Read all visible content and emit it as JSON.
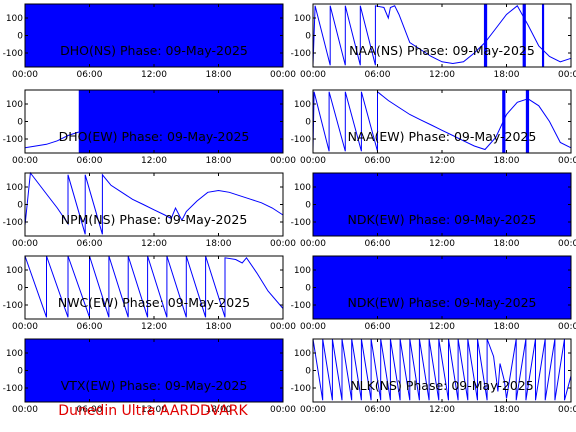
{
  "footer": "Dunedin Ultra AARDDVARK",
  "colors": {
    "trace": "#0000ff",
    "footer": "#e00000",
    "axes": "#000000"
  },
  "chart_data": [
    {
      "type": "line",
      "title": "DHO(NS) Phase: 09-May-2025",
      "ylim": [
        -180,
        180
      ],
      "yticks": [
        100,
        0,
        -100
      ],
      "xlim": [
        0,
        24
      ],
      "xticks": [
        "00:00",
        "06:00",
        "12:00",
        "18:00",
        "00:00"
      ],
      "segments": [
        {
          "mode": "fill",
          "x": [
            0,
            24
          ],
          "y": [
            -180,
            180
          ]
        }
      ]
    },
    {
      "type": "line",
      "title": "NAA(NS) Phase: 09-May-2025",
      "ylim": [
        -180,
        180
      ],
      "yticks": [
        100,
        0,
        -100
      ],
      "xlim": [
        0,
        24
      ],
      "xticks": [
        "00:00",
        "06:00",
        "12:00",
        "18:00",
        "00:00"
      ],
      "segments": [
        {
          "mode": "line",
          "x": [
            0,
            0.2,
            0.2,
            1.6,
            1.6,
            3.0,
            3.0,
            4.4,
            4.4,
            5.8,
            5.8,
            6.6,
            7.0,
            7.2,
            7.6,
            8.0,
            9.0,
            10.0,
            11.0,
            12.0,
            13.0,
            14.0,
            15.0,
            16.0,
            17.0,
            18.0,
            19.0,
            20.0,
            21.0,
            22.0,
            23.0,
            24.0
          ],
          "y": [
            -170,
            170,
            170,
            -170,
            170,
            -170,
            170,
            -170,
            170,
            -170,
            170,
            160,
            100,
            160,
            170,
            120,
            -40,
            -80,
            -120,
            -150,
            -160,
            -150,
            -100,
            -40,
            40,
            120,
            170,
            60,
            -60,
            -120,
            -150,
            -130
          ]
        },
        {
          "mode": "fill",
          "x": [
            15.9,
            16.2
          ],
          "y": [
            -180,
            180
          ]
        },
        {
          "mode": "fill",
          "x": [
            19.5,
            19.8
          ],
          "y": [
            -180,
            180
          ]
        },
        {
          "mode": "fill",
          "x": [
            21.3,
            21.5
          ],
          "y": [
            -180,
            180
          ]
        }
      ]
    },
    {
      "type": "line",
      "title": "DHO(EW) Phase: 09-May-2025",
      "ylim": [
        -180,
        180
      ],
      "yticks": [
        100,
        0,
        -100
      ],
      "xlim": [
        0,
        24
      ],
      "xticks": [
        "00:00",
        "06:00",
        "12:00",
        "18:00",
        "00:00"
      ],
      "segments": [
        {
          "mode": "line",
          "x": [
            0,
            1,
            2,
            3,
            4,
            5
          ],
          "y": [
            -150,
            -140,
            -130,
            -110,
            -80,
            -60
          ]
        },
        {
          "mode": "fill",
          "x": [
            5,
            24
          ],
          "y": [
            -180,
            180
          ]
        }
      ]
    },
    {
      "type": "line",
      "title": "NAA(EW) Phase: 09-May-2025",
      "ylim": [
        -180,
        180
      ],
      "yticks": [
        100,
        0,
        -100
      ],
      "xlim": [
        0,
        24
      ],
      "xticks": [
        "00:00",
        "06:00",
        "12:00",
        "18:00",
        "00:00"
      ],
      "segments": [
        {
          "mode": "line",
          "x": [
            0,
            0.1,
            0.1,
            1.5,
            1.5,
            3.0,
            3.0,
            4.5,
            4.5,
            6.0,
            6.0,
            7.0,
            8.0,
            9.0,
            10.0,
            11.0,
            12.0,
            13.0,
            14.0,
            15.0,
            16.0,
            17.0,
            18.0,
            19.0,
            20.0,
            21.0,
            22.0,
            23.0,
            24.0
          ],
          "y": [
            -170,
            170,
            170,
            -170,
            170,
            -170,
            170,
            -170,
            170,
            -170,
            170,
            120,
            80,
            40,
            10,
            -20,
            -50,
            -80,
            -110,
            -140,
            -160,
            -90,
            40,
            110,
            130,
            90,
            0,
            -120,
            -150
          ]
        },
        {
          "mode": "fill",
          "x": [
            17.6,
            17.9
          ],
          "y": [
            -180,
            180
          ]
        },
        {
          "mode": "fill",
          "x": [
            19.8,
            20.1
          ],
          "y": [
            -180,
            180
          ]
        }
      ]
    },
    {
      "type": "line",
      "title": "NPM(NS) Phase: 09-May-2025",
      "ylim": [
        -180,
        180
      ],
      "yticks": [
        100,
        0,
        -100
      ],
      "xlim": [
        0,
        24
      ],
      "xticks": [
        "00:00",
        "06:00",
        "12:00",
        "18:00",
        "00:00"
      ],
      "segments": [
        {
          "mode": "line",
          "x": [
            0,
            0.5,
            1.0,
            2.0,
            3.0,
            4.0,
            4.0,
            5.6,
            5.6,
            7.2,
            7.2,
            8.0,
            9.0,
            10.0,
            11.0,
            12.0,
            13.0,
            13.6,
            14.0,
            14.6,
            15.0,
            16.0,
            17.0,
            18.0,
            19.0,
            20.0,
            21.0,
            22.0,
            23.0,
            24.0
          ],
          "y": [
            -120,
            180,
            140,
            60,
            -20,
            -110,
            170,
            -170,
            170,
            -170,
            170,
            110,
            70,
            30,
            0,
            -30,
            -60,
            -80,
            -20,
            -90,
            -40,
            20,
            70,
            80,
            70,
            50,
            30,
            10,
            -20,
            -60
          ]
        }
      ]
    },
    {
      "type": "line",
      "title": "NDK(EW) Phase: 09-May-2025",
      "ylim": [
        -180,
        180
      ],
      "yticks": [
        100,
        0,
        -100
      ],
      "xlim": [
        0,
        24
      ],
      "xticks": [
        "00:00",
        "06:00",
        "12:00",
        "18:00",
        "00:00"
      ],
      "segments": [
        {
          "mode": "fill",
          "x": [
            0,
            24
          ],
          "y": [
            -180,
            180
          ]
        }
      ]
    },
    {
      "type": "line",
      "title": "NWC(EW) Phase: 09-May-2025",
      "ylim": [
        -180,
        180
      ],
      "yticks": [
        100,
        0,
        -100
      ],
      "xlim": [
        0,
        24
      ],
      "xticks": [
        "00:00",
        "06:00",
        "12:00",
        "18:00",
        "00:00"
      ],
      "segments": [
        {
          "mode": "line",
          "x": [
            0,
            2,
            2,
            4,
            4,
            6,
            6,
            7.8,
            7.8,
            9.6,
            9.6,
            11.4,
            11.4,
            13.2,
            13.2,
            15.0,
            15.0,
            16.8,
            16.8,
            18.6,
            18.6,
            19.6,
            20.2,
            20.6,
            21.6,
            22.6,
            24.0
          ],
          "y": [
            180,
            -170,
            180,
            -170,
            180,
            -170,
            180,
            -170,
            180,
            -170,
            180,
            -170,
            180,
            -170,
            180,
            -170,
            180,
            -170,
            180,
            -170,
            170,
            160,
            140,
            170,
            80,
            -20,
            -120
          ]
        }
      ]
    },
    {
      "type": "line",
      "title": "NDK(EW) Phase: 09-May-2025",
      "ylim": [
        -180,
        180
      ],
      "yticks": [
        100,
        0,
        -100
      ],
      "xlim": [
        0,
        24
      ],
      "xticks": [
        "00:00",
        "06:00",
        "12:00",
        "18:00",
        "00:00"
      ],
      "segments": [
        {
          "mode": "fill",
          "x": [
            0,
            24
          ],
          "y": [
            -180,
            180
          ]
        }
      ]
    },
    {
      "type": "line",
      "title": "VTX(EW) Phase: 09-May-2025",
      "ylim": [
        -180,
        180
      ],
      "yticks": [
        100,
        0,
        -100
      ],
      "xlim": [
        0,
        24
      ],
      "xticks": [
        "00:00",
        "06:00",
        "12:00",
        "18:00",
        "00:00"
      ],
      "segments": [
        {
          "mode": "fill",
          "x": [
            0,
            24
          ],
          "y": [
            -180,
            180
          ]
        }
      ]
    },
    {
      "type": "line",
      "title": "NLK(NS) Phase: 09-May-2025",
      "ylim": [
        -180,
        180
      ],
      "yticks": [
        100,
        0,
        -100
      ],
      "xlim": [
        0,
        24
      ],
      "xticks": [
        "00:00",
        "06:00",
        "12:00",
        "18:00",
        "00:00"
      ],
      "segments": [
        {
          "mode": "line",
          "x": [
            0,
            0.9,
            0.9,
            1.8,
            1.8,
            2.7,
            2.7,
            3.6,
            3.6,
            4.5,
            4.5,
            5.4,
            5.4,
            6.3,
            6.3,
            7.2,
            7.2,
            8.1,
            8.1,
            9.0,
            9.0,
            9.9,
            9.9,
            10.8,
            10.8,
            11.7,
            11.7,
            12.6,
            12.6,
            13.5,
            13.5,
            14.4,
            14.4,
            15.3,
            15.3,
            16.2,
            16.2,
            16.8,
            17.2,
            17.4,
            17.8,
            18.0,
            18.9,
            18.9,
            19.8,
            19.8,
            20.7,
            20.7,
            21.6,
            21.6,
            22.5,
            22.5,
            23.4,
            23.4,
            24.0
          ],
          "y": [
            180,
            -170,
            180,
            -170,
            180,
            -170,
            180,
            -170,
            180,
            -170,
            180,
            -170,
            180,
            -170,
            180,
            -170,
            180,
            -170,
            180,
            -170,
            180,
            -170,
            180,
            -170,
            180,
            -170,
            180,
            -170,
            180,
            -170,
            180,
            -170,
            180,
            -170,
            180,
            -170,
            180,
            80,
            -120,
            40,
            -60,
            -160,
            180,
            -170,
            180,
            -170,
            180,
            -170,
            180,
            -170,
            180,
            -170,
            180,
            -170,
            -30
          ]
        }
      ]
    }
  ]
}
